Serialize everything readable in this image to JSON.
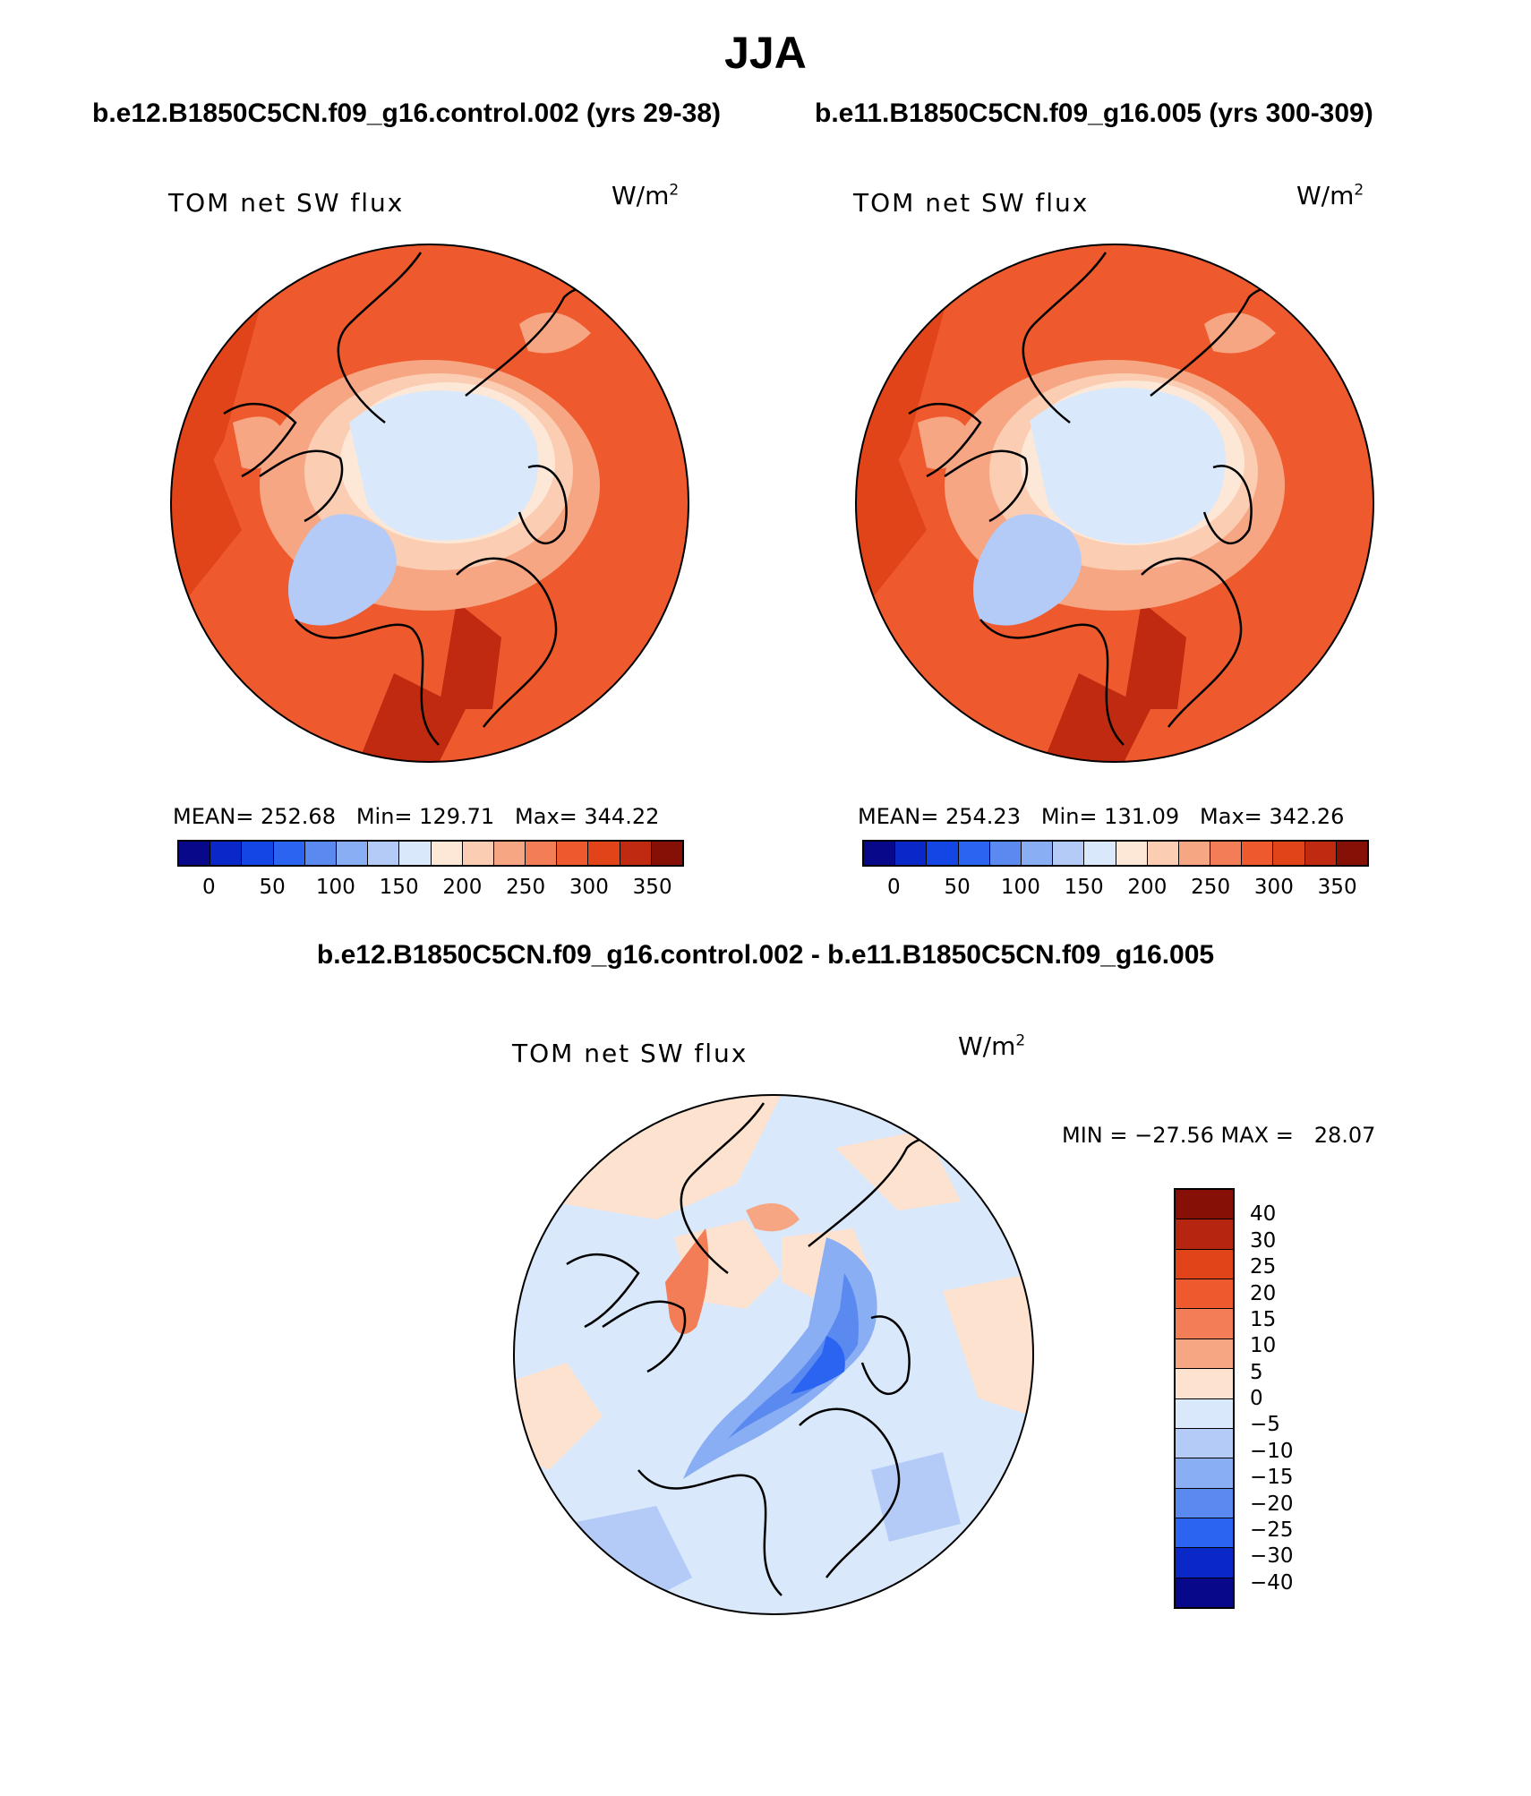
{
  "figure": {
    "title": "JJA",
    "diff_title": "b.e12.B1850C5CN.f09_g16.control.002 - b.e11.B1850C5CN.f09_g16.005"
  },
  "panels": [
    {
      "case_title": "b.e12.B1850C5CN.f09_g16.control.002 (yrs 29-38)",
      "variable_label": "TOM net SW flux",
      "units": "W/m",
      "units_sup": "2",
      "stats": "MEAN= 252.68   Min= 129.71   Max= 344.22",
      "colorbar_ticks": [
        "0",
        "50",
        "100",
        "150",
        "200",
        "250",
        "300",
        "350"
      ]
    },
    {
      "case_title": "b.e11.B1850C5CN.f09_g16.005 (yrs 300-309)",
      "variable_label": "TOM net SW flux",
      "units": "W/m",
      "units_sup": "2",
      "stats": "MEAN= 254.23   Min= 131.09   Max= 342.26",
      "colorbar_ticks": [
        "0",
        "50",
        "100",
        "150",
        "200",
        "250",
        "300",
        "350"
      ]
    }
  ],
  "diff_panel": {
    "variable_label": "TOM net SW flux",
    "units": "W/m",
    "units_sup": "2",
    "stats": "MIN = −27.56 MAX =   28.07",
    "colorbar_ticks": [
      "40",
      "30",
      "25",
      "20",
      "15",
      "10",
      "5",
      "0",
      "−5",
      "−10",
      "−15",
      "−20",
      "−25",
      "−30",
      "−40"
    ]
  },
  "colors": {
    "abs_scale": [
      "#08088a",
      "#0a28c8",
      "#1446e6",
      "#2a64f0",
      "#5a8af0",
      "#8aaef4",
      "#b4cbf7",
      "#d9e8fb",
      "#fde8d8",
      "#fbcdb3",
      "#f7a684",
      "#f37d56",
      "#ee5a2e",
      "#e2441a",
      "#bf2a10",
      "#861005"
    ],
    "diff_scale": [
      "#861005",
      "#b52510",
      "#e2441a",
      "#ee5a2e",
      "#f37d56",
      "#f7a684",
      "#fde2cf",
      "#d9e8fb",
      "#b4cbf7",
      "#8aaef4",
      "#5a8af0",
      "#2a64f0",
      "#0a28c8",
      "#08088a"
    ],
    "map_ocean_abs": "#ee5a2e",
    "map_ice": "#d9e8fb",
    "map_greenland": "#b4cbf7",
    "map_diff_base": "#d9e8fb",
    "map_diff_pos": "#fde2cf",
    "map_diff_neg": "#5a8af0"
  }
}
